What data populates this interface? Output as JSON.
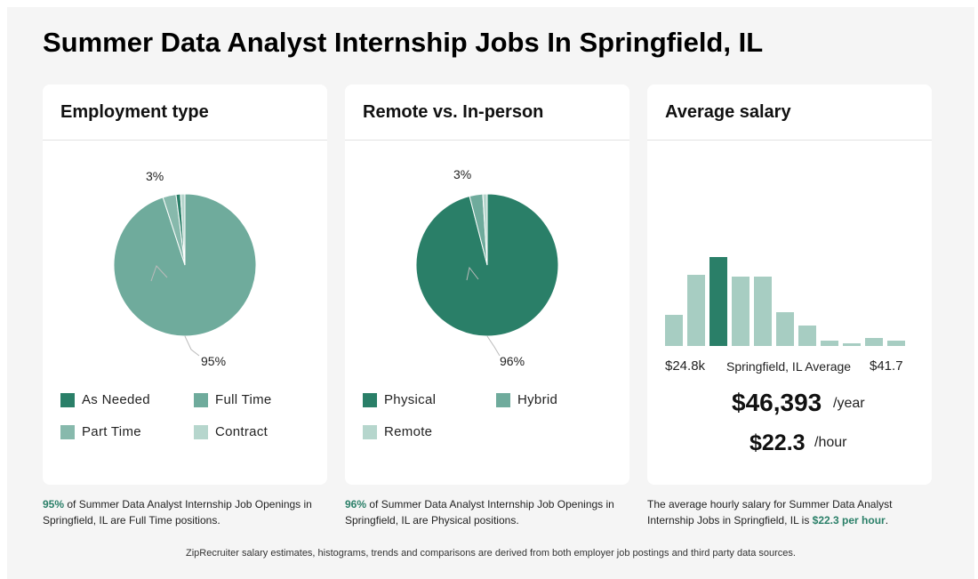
{
  "page_title": "Summer Data Analyst Internship Jobs In Springfield, IL",
  "cards": {
    "employment": {
      "title": "Employment type",
      "label_small": "3%",
      "label_large": "95%",
      "caption_highlight": "95%",
      "caption_text": " of Summer Data Analyst Internship Job Openings in Springfield, IL are Full Time positions."
    },
    "remote": {
      "title": "Remote vs. In-person",
      "label_small": "3%",
      "label_large": "96%",
      "caption_highlight": "96%",
      "caption_text": " of Summer Data Analyst Internship Job Openings in Springfield, IL are Physical positions."
    },
    "salary": {
      "title": "Average salary",
      "min_label": "$24.8k",
      "mid_label": "Springfield, IL Average",
      "max_label": "$41.7",
      "yearly": "$46,393",
      "yearly_unit": "/year",
      "hourly": "$22.3",
      "hourly_unit": "/hour",
      "caption_text": "The average hourly salary for Summer Data Analyst Internship Jobs in Springfield, IL is ",
      "caption_highlight": "$22.3 per hour",
      "caption_end": "."
    }
  },
  "footer": "ZipRecruiter salary estimates, histograms, trends and comparisons are derived from both employer job postings and third party data sources.",
  "colors": {
    "dark_green": "#2a7f68",
    "mid_green": "#6fab9c",
    "light_green": "#87b9ac",
    "pale_green": "#b6d6cd",
    "bar_light": "#a7cdc2"
  },
  "chart_data": [
    {
      "type": "pie",
      "title": "Employment type",
      "categories": [
        "As Needed",
        "Full Time",
        "Part Time",
        "Contract"
      ],
      "values": [
        1,
        95,
        3,
        1
      ],
      "colors": [
        "#2a7f68",
        "#6fab9c",
        "#87b9ac",
        "#b6d6cd"
      ],
      "legend": "bottom"
    },
    {
      "type": "pie",
      "title": "Remote vs. In-person",
      "categories": [
        "Physical",
        "Hybrid",
        "Remote"
      ],
      "values": [
        96,
        3,
        1
      ],
      "colors": [
        "#2a7f68",
        "#6fab9c",
        "#b6d6cd"
      ],
      "legend": "bottom"
    },
    {
      "type": "bar",
      "title": "Average salary",
      "values": [
        35,
        80,
        100,
        78,
        78,
        38,
        23,
        6,
        3,
        9,
        6
      ],
      "highlight_index": 2,
      "x_range_labels": [
        "$24.8k",
        "$41.7"
      ],
      "annotation": "Springfield, IL Average"
    }
  ]
}
